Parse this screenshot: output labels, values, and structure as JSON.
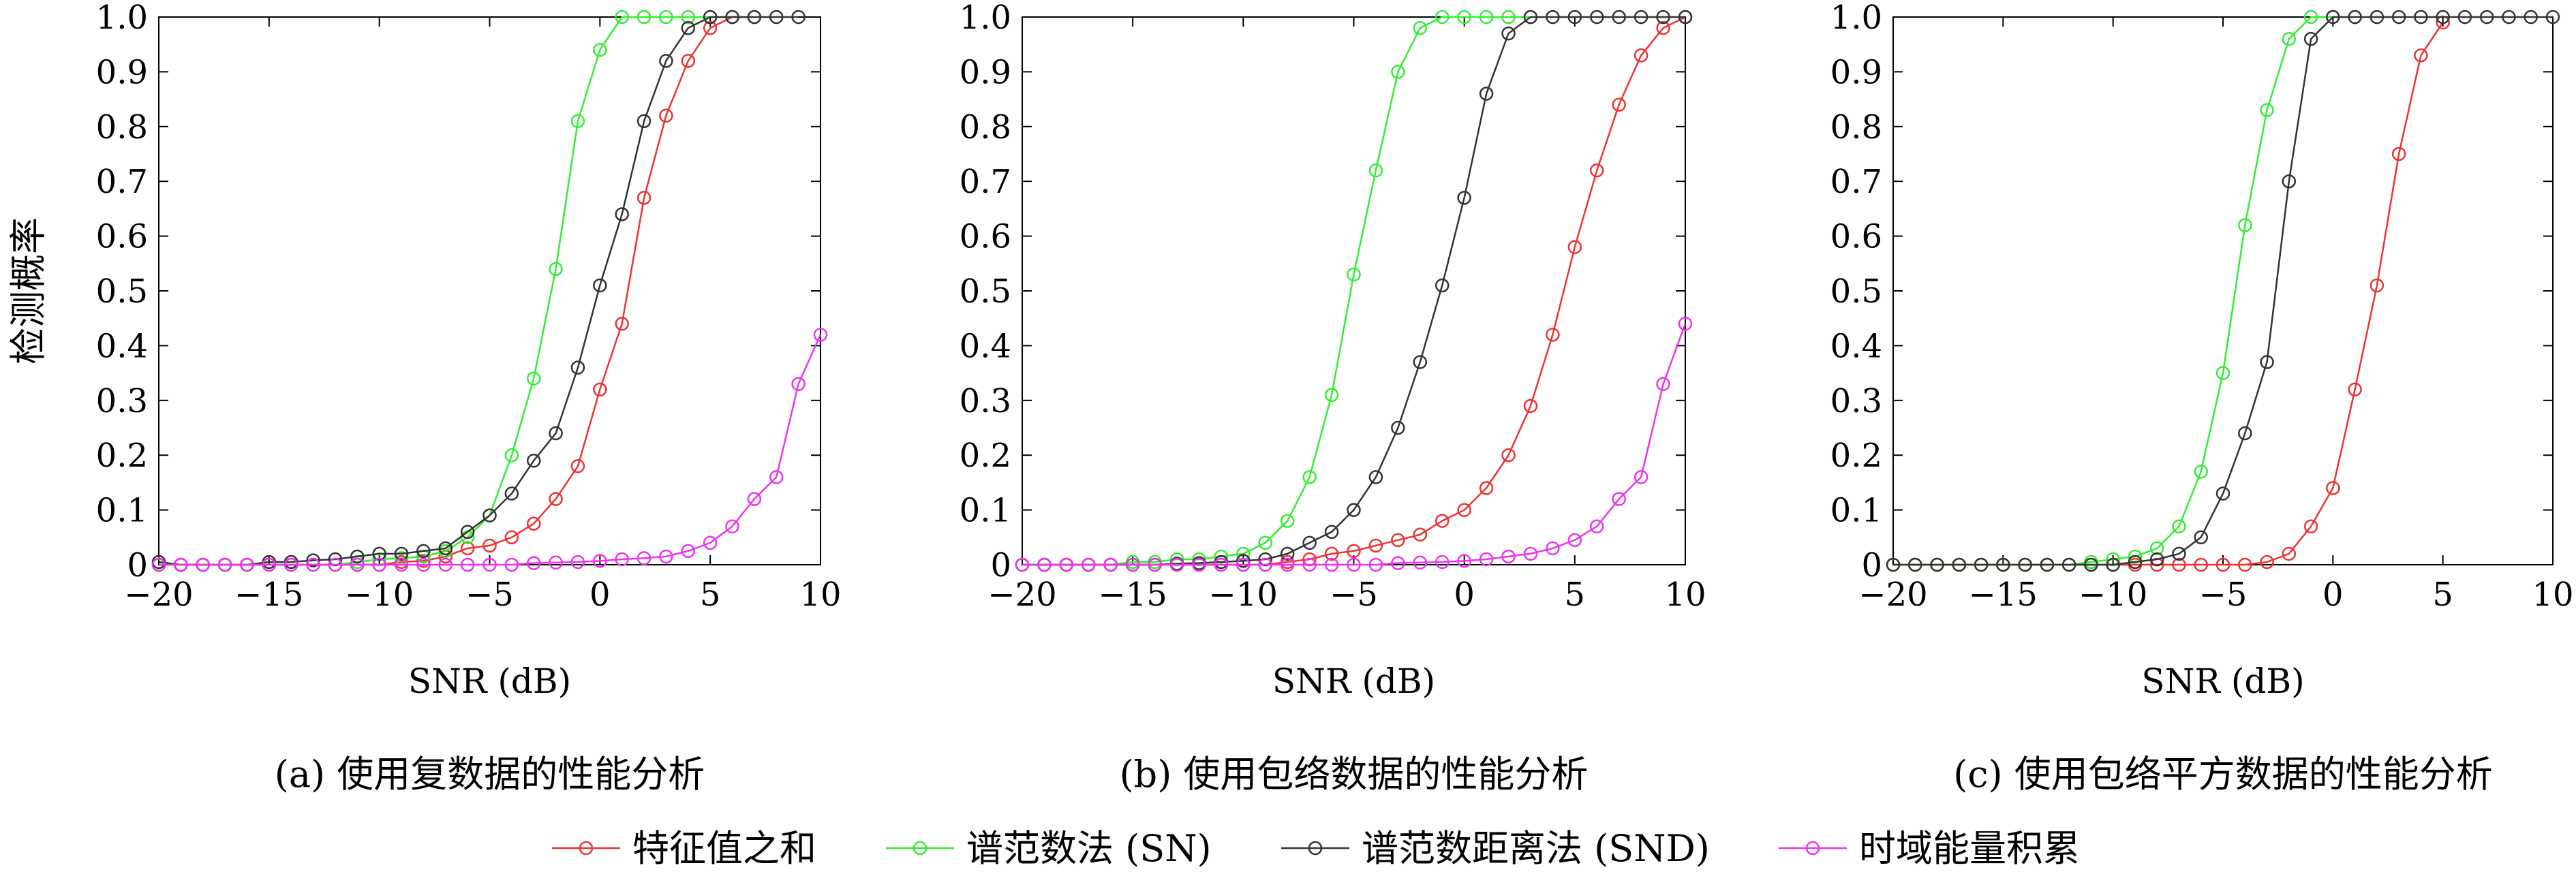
{
  "ylabel": "检测概率",
  "colors": {
    "eig": "#ee3333",
    "sn": "#33ee33",
    "snd": "#333333",
    "energy": "#ee33ee"
  },
  "legend": [
    {
      "key": "eig",
      "label": "特征值之和"
    },
    {
      "key": "sn",
      "label": "谱范数法 (SN)"
    },
    {
      "key": "snd",
      "label": "谱范数距离法 (SND)"
    },
    {
      "key": "energy",
      "label": "时域能量积累"
    }
  ],
  "chart_data": [
    {
      "type": "line",
      "caption": "(a) 使用复数据的性能分析",
      "xlabel": "SNR (dB)",
      "ylabel": "检测概率",
      "xlim": [
        -20,
        10
      ],
      "ylim": [
        0,
        1
      ],
      "xticks": [
        "−20",
        "−15",
        "−10",
        "−5",
        "0",
        "5",
        "10"
      ],
      "yticks": [
        "0",
        "0.1",
        "0.2",
        "0.3",
        "0.4",
        "0.5",
        "0.6",
        "0.7",
        "0.8",
        "0.9",
        "1.0"
      ],
      "x": [
        -20,
        -19,
        -18,
        -17,
        -16,
        -15,
        -14,
        -13,
        -12,
        -11,
        -10,
        -9,
        -8,
        -7,
        -6,
        -5,
        -4,
        -3,
        -2,
        -1,
        0,
        1,
        2,
        3,
        4,
        5,
        6,
        7,
        8,
        9,
        10
      ],
      "series": [
        {
          "key": "eig",
          "name": "特征值之和",
          "values": [
            0,
            0,
            0,
            0,
            0,
            0,
            0,
            0,
            0,
            0,
            0,
            0.005,
            0.007,
            0.015,
            0.03,
            0.035,
            0.05,
            0.075,
            0.12,
            0.18,
            0.32,
            0.44,
            0.67,
            0.82,
            0.92,
            0.98,
            1.0,
            1.0,
            null,
            null,
            null
          ]
        },
        {
          "key": "sn",
          "name": "谱范数法 (SN)",
          "values": [
            0,
            0,
            0,
            0,
            0,
            0,
            0,
            0,
            0,
            0.005,
            0.01,
            0.012,
            0.015,
            0.025,
            0.05,
            0.09,
            0.2,
            0.34,
            0.54,
            0.81,
            0.94,
            1.0,
            1.0,
            1.0,
            1.0,
            1.0,
            1.0,
            null,
            null,
            null,
            null
          ]
        },
        {
          "key": "snd",
          "name": "谱范数距离法 (SND)",
          "values": [
            0.005,
            0,
            0,
            0,
            0,
            0.005,
            0.005,
            0.008,
            0.01,
            0.015,
            0.02,
            0.02,
            0.025,
            0.03,
            0.06,
            0.09,
            0.13,
            0.19,
            0.24,
            0.36,
            0.51,
            0.64,
            0.81,
            0.92,
            0.98,
            1.0,
            1.0,
            1.0,
            1.0,
            1.0,
            null
          ]
        },
        {
          "key": "energy",
          "name": "时域能量积累",
          "values": [
            0,
            0,
            0,
            0,
            0,
            0,
            0,
            0,
            0,
            0,
            0,
            0,
            0,
            0,
            0,
            0,
            0,
            0.003,
            0.004,
            0.005,
            0.007,
            0.01,
            0.012,
            0.015,
            0.025,
            0.04,
            0.07,
            0.12,
            0.16,
            0.33,
            0.42
          ]
        }
      ]
    },
    {
      "type": "line",
      "caption": "(b) 使用包络数据的性能分析",
      "xlabel": "SNR (dB)",
      "ylabel": "",
      "xlim": [
        -20,
        10
      ],
      "ylim": [
        0,
        1
      ],
      "xticks": [
        "−20",
        "−15",
        "−10",
        "−5",
        "0",
        "5",
        "10"
      ],
      "yticks": [
        "0",
        "0.1",
        "0.2",
        "0.3",
        "0.4",
        "0.5",
        "0.6",
        "0.7",
        "0.8",
        "0.9",
        "1.0"
      ],
      "x": [
        -20,
        -19,
        -18,
        -17,
        -16,
        -15,
        -14,
        -13,
        -12,
        -11,
        -10,
        -9,
        -8,
        -7,
        -6,
        -5,
        -4,
        -3,
        -2,
        -1,
        0,
        1,
        2,
        3,
        4,
        5,
        6,
        7,
        8,
        9,
        10
      ],
      "series": [
        {
          "key": "eig",
          "name": "特征值之和",
          "values": [
            0,
            0,
            0,
            0,
            0,
            0,
            0,
            0,
            0,
            0,
            0,
            0,
            0.005,
            0.01,
            0.02,
            0.025,
            0.035,
            0.045,
            0.055,
            0.08,
            0.1,
            0.14,
            0.2,
            0.29,
            0.42,
            0.58,
            0.72,
            0.84,
            0.93,
            0.98,
            1.0
          ]
        },
        {
          "key": "sn",
          "name": "谱范数法 (SN)",
          "values": [
            0,
            0,
            0,
            0,
            0,
            0.005,
            0.005,
            0.01,
            0.01,
            0.015,
            0.02,
            0.04,
            0.08,
            0.16,
            0.31,
            0.53,
            0.72,
            0.9,
            0.98,
            1.0,
            1.0,
            1.0,
            1.0,
            1.0,
            null,
            null,
            null,
            null,
            null,
            null,
            null
          ]
        },
        {
          "key": "snd",
          "name": "谱范数距离法 (SND)",
          "values": [
            0,
            0,
            0,
            0,
            0,
            0,
            0,
            0.002,
            0.003,
            0.005,
            0.007,
            0.01,
            0.02,
            0.04,
            0.06,
            0.1,
            0.16,
            0.25,
            0.37,
            0.51,
            0.67,
            0.86,
            0.97,
            1.0,
            1.0,
            1.0,
            1.0,
            1.0,
            1.0,
            1.0,
            1.0
          ]
        },
        {
          "key": "energy",
          "name": "时域能量积累",
          "values": [
            0,
            0,
            0,
            0,
            0,
            0,
            0,
            0,
            0,
            0,
            0,
            0,
            0,
            0,
            0,
            0,
            0,
            0.003,
            0.004,
            0.005,
            0.007,
            0.01,
            0.015,
            0.02,
            0.03,
            0.045,
            0.07,
            0.12,
            0.16,
            0.33,
            0.44
          ]
        }
      ]
    },
    {
      "type": "line",
      "caption": "(c) 使用包络平方数据的性能分析",
      "xlabel": "SNR (dB)",
      "ylabel": "",
      "xlim": [
        -20,
        10
      ],
      "ylim": [
        0,
        1
      ],
      "xticks": [
        "−20",
        "−15",
        "−10",
        "−5",
        "0",
        "5",
        "10"
      ],
      "yticks": [
        "0",
        "0.1",
        "0.2",
        "0.3",
        "0.4",
        "0.5",
        "0.6",
        "0.7",
        "0.8",
        "0.9",
        "1.0"
      ],
      "x": [
        -20,
        -19,
        -18,
        -17,
        -16,
        -15,
        -14,
        -13,
        -12,
        -11,
        -10,
        -9,
        -8,
        -7,
        -6,
        -5,
        -4,
        -3,
        -2,
        -1,
        0,
        1,
        2,
        3,
        4,
        5,
        6,
        7,
        8,
        9,
        10
      ],
      "series": [
        {
          "key": "eig",
          "name": "特征值之和",
          "values": [
            0,
            0,
            0,
            0,
            0,
            0,
            0,
            0,
            0,
            0,
            0,
            0,
            0,
            0,
            0,
            0,
            0,
            0.005,
            0.02,
            0.07,
            0.14,
            0.32,
            0.51,
            0.75,
            0.93,
            0.99,
            null,
            null,
            null,
            null,
            null
          ]
        },
        {
          "key": "sn",
          "name": "谱范数法 (SN)",
          "values": [
            0,
            0,
            0,
            0,
            0,
            0,
            0,
            0,
            0,
            0.005,
            0.01,
            0.015,
            0.03,
            0.07,
            0.17,
            0.35,
            0.62,
            0.83,
            0.96,
            1.0,
            1.0,
            1.0,
            null,
            null,
            null,
            null,
            null,
            null,
            null,
            null,
            null
          ]
        },
        {
          "key": "snd",
          "name": "谱范数距离法 (SND)",
          "values": [
            0,
            0,
            0,
            0,
            0,
            0,
            0,
            0,
            0,
            0,
            0,
            0.005,
            0.01,
            0.02,
            0.05,
            0.13,
            0.24,
            0.37,
            0.7,
            0.96,
            1.0,
            1.0,
            1.0,
            1.0,
            1.0,
            1.0,
            1.0,
            1.0,
            1.0,
            1.0,
            1.0
          ]
        }
      ]
    }
  ]
}
